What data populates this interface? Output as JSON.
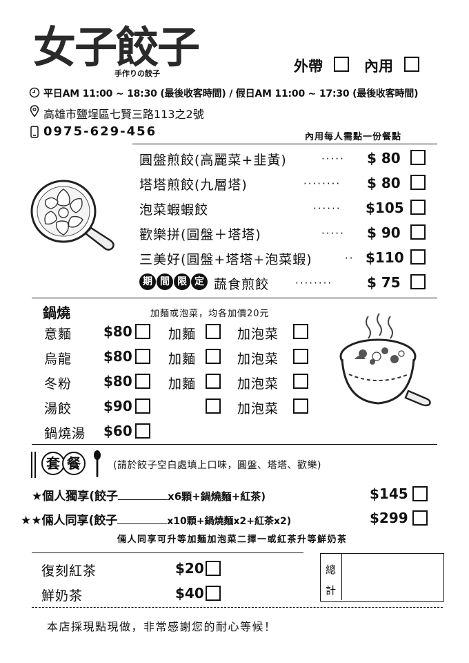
{
  "brand": {
    "logo_text": "女子餃子",
    "logo_sub": "手作りの餃子"
  },
  "order_type": {
    "takeout_label": "外帶",
    "dinein_label": "內用"
  },
  "info": {
    "hours": "平日AM 11:00 ~ 18:30 (最後收客時間) / 假日AM 11:00 ~ 17:30 (最後收客時間)",
    "address": "高雄市鹽埕區七賢三路113之2號",
    "phone": "0975-629-456",
    "dinein_note": "內用每人需點一份餐點"
  },
  "dumplings": [
    {
      "name": "圓盤煎餃(高麗菜+韭黃)",
      "dots": "·····",
      "price": "$ 80"
    },
    {
      "name": "塔塔煎餃(九層塔)",
      "dots": "········",
      "price": "$ 80"
    },
    {
      "name": "泡菜蝦蝦餃",
      "dots": "······",
      "price": "$105"
    },
    {
      "name": "歡樂拼(圓盤＋塔塔)",
      "dots": "·····",
      "price": "$ 90"
    },
    {
      "name": "三美好(圓盤+塔塔+泡菜蝦)",
      "dots": "··",
      "price": "$110"
    },
    {
      "name": "蔬食煎餃",
      "dots": "········",
      "price": "$ 75",
      "badge": [
        "期",
        "間",
        "限",
        "定"
      ]
    }
  ],
  "hotpot": {
    "title": "鍋燒",
    "note": "加麵或泡菜，均各加價20元",
    "add_noodle_label": "加麵",
    "add_kimchi_label": "加泡菜",
    "items": [
      {
        "name": "意麵",
        "price": "$80"
      },
      {
        "name": "烏龍",
        "price": "$80"
      },
      {
        "name": "冬粉",
        "price": "$80"
      },
      {
        "name": "湯餃",
        "price": "$90"
      },
      {
        "name": "鍋燒湯",
        "price": "$60"
      }
    ]
  },
  "sets": {
    "title_chars": [
      "套",
      "餐"
    ],
    "note": "(請於餃子空白處填上口味，圓盤、塔塔、歡樂)",
    "items": [
      {
        "prefix": "★個人獨享(餃子",
        "suffix": "x6顆+鍋燒麵+紅茶)",
        "price": "$145"
      },
      {
        "prefix": "★★倆人同享(餃子",
        "suffix": "x10顆+鍋燒麵x2+紅茶x2)",
        "price": "$299"
      }
    ],
    "footnote": "倆人同享可升等加麵加泡菜二擇一或紅茶升等鮮奶茶"
  },
  "drinks": [
    {
      "name": "復刻紅茶",
      "price": "$20"
    },
    {
      "name": "鮮奶茶",
      "price": "$40"
    }
  ],
  "total": {
    "label_1": "總",
    "label_2": "計"
  },
  "footer": "本店採現點現做，非常感謝您的耐心等候！"
}
